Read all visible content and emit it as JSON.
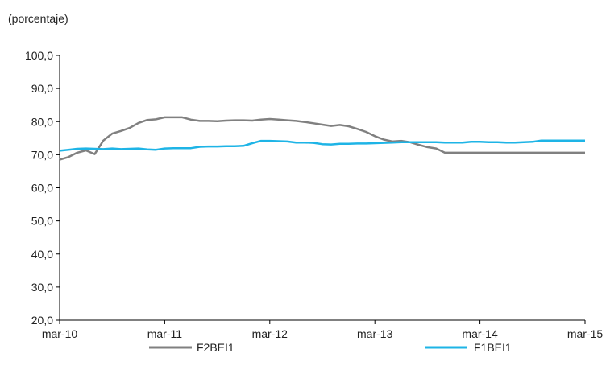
{
  "chart_data": {
    "type": "line",
    "ylabel": "(porcentaje)",
    "ylim": [
      20,
      100
    ],
    "yticks": [
      "20,0",
      "30,0",
      "40,0",
      "50,0",
      "60,0",
      "70,0",
      "80,0",
      "90,0",
      "100,0"
    ],
    "xticks": [
      "mar-10",
      "mar-11",
      "mar-12",
      "mar-13",
      "mar-14",
      "mar-15"
    ],
    "x": [
      "2010-03",
      "2010-04",
      "2010-05",
      "2010-06",
      "2010-07",
      "2010-08",
      "2010-09",
      "2010-10",
      "2010-11",
      "2010-12",
      "2011-01",
      "2011-02",
      "2011-03",
      "2011-04",
      "2011-05",
      "2011-06",
      "2011-07",
      "2011-08",
      "2011-09",
      "2011-10",
      "2011-11",
      "2011-12",
      "2012-01",
      "2012-02",
      "2012-03",
      "2012-04",
      "2012-05",
      "2012-06",
      "2012-07",
      "2012-08",
      "2012-09",
      "2012-10",
      "2012-11",
      "2012-12",
      "2013-01",
      "2013-02",
      "2013-03",
      "2013-04",
      "2013-05",
      "2013-06",
      "2013-07",
      "2013-08",
      "2013-09",
      "2013-10",
      "2013-11",
      "2013-12",
      "2014-01",
      "2014-02",
      "2014-03",
      "2014-04",
      "2014-05",
      "2014-06",
      "2014-07",
      "2014-08",
      "2014-09",
      "2014-10",
      "2014-11",
      "2014-12",
      "2015-01",
      "2015-02",
      "2015-03"
    ],
    "series": [
      {
        "name": "F2BEI1",
        "color": "#808080",
        "values": [
          68.5,
          69.3,
          70.6,
          71.3,
          70.2,
          74.3,
          76.4,
          77.2,
          78.1,
          79.6,
          80.5,
          80.7,
          81.3,
          81.3,
          81.3,
          80.6,
          80.2,
          80.2,
          80.1,
          80.3,
          80.4,
          80.4,
          80.3,
          80.6,
          80.8,
          80.6,
          80.4,
          80.2,
          79.9,
          79.5,
          79.1,
          78.7,
          79.0,
          78.6,
          77.8,
          76.9,
          75.6,
          74.6,
          74.0,
          74.2,
          73.8,
          73.0,
          72.3,
          71.9,
          70.6,
          70.6,
          70.6,
          70.6,
          70.6,
          70.6,
          70.6,
          70.6,
          70.6,
          70.6,
          70.6,
          70.6,
          70.6,
          70.6,
          70.6,
          70.6,
          70.6
        ]
      },
      {
        "name": "F1BEI1",
        "color": "#1eb4e6",
        "values": [
          71.2,
          71.5,
          71.8,
          71.9,
          71.8,
          71.7,
          71.9,
          71.7,
          71.8,
          71.9,
          71.6,
          71.5,
          71.9,
          72.0,
          72.0,
          72.0,
          72.4,
          72.5,
          72.5,
          72.6,
          72.6,
          72.7,
          73.5,
          74.2,
          74.2,
          74.1,
          74.0,
          73.7,
          73.7,
          73.6,
          73.2,
          73.1,
          73.3,
          73.3,
          73.4,
          73.4,
          73.5,
          73.6,
          73.7,
          73.8,
          73.8,
          73.8,
          73.8,
          73.8,
          73.7,
          73.7,
          73.7,
          73.9,
          73.9,
          73.8,
          73.8,
          73.7,
          73.7,
          73.8,
          73.9,
          74.3,
          74.3,
          74.3,
          74.3,
          74.3,
          74.3
        ]
      }
    ]
  }
}
